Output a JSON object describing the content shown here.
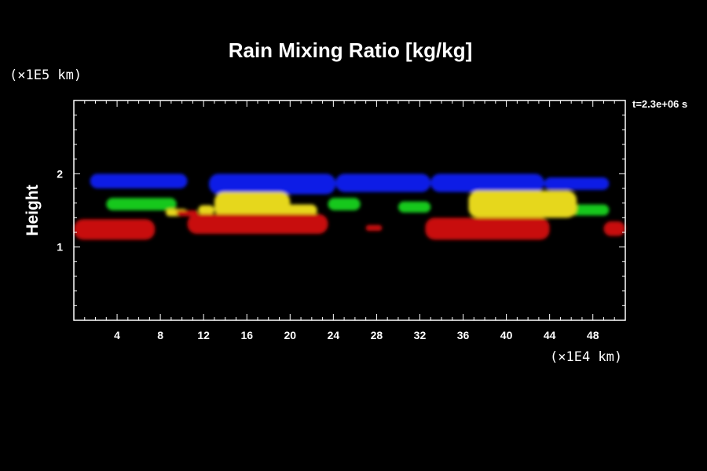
{
  "chart_data": {
    "type": "heatmap",
    "title": "Rain Mixing Ratio [kg/kg]",
    "ylabel": "Height",
    "xunit": "(×1E4 km)",
    "yunit": "(×1E5 km)",
    "time_label": "t=2.3e+06 s",
    "xlim": [
      0,
      51
    ],
    "ylim": [
      0,
      3.0
    ],
    "x_ticks": [
      4,
      8,
      12,
      16,
      20,
      24,
      28,
      32,
      36,
      40,
      44,
      48
    ],
    "y_ticks": [
      1,
      2
    ],
    "grid": false,
    "colors": {
      "background": "#000000",
      "frame": "#ffffff",
      "text": "#ffffff",
      "blue": "#0a1ee6",
      "green": "#19c81e",
      "yellow": "#e6d71e",
      "red": "#c80f0f"
    },
    "regions": [
      {
        "color": "blue",
        "x": [
          1.5,
          10.5
        ],
        "y": [
          1.8,
          2.0
        ]
      },
      {
        "color": "blue",
        "x": [
          12.5,
          24.2
        ],
        "y": [
          1.72,
          2.0
        ]
      },
      {
        "color": "blue",
        "x": [
          24.2,
          33.0
        ],
        "y": [
          1.75,
          2.0
        ]
      },
      {
        "color": "blue",
        "x": [
          33.0,
          43.5
        ],
        "y": [
          1.75,
          2.0
        ]
      },
      {
        "color": "blue",
        "x": [
          43.5,
          49.5
        ],
        "y": [
          1.78,
          1.95
        ]
      },
      {
        "color": "green",
        "x": [
          3.0,
          9.5
        ],
        "y": [
          1.5,
          1.67
        ]
      },
      {
        "color": "green",
        "x": [
          23.5,
          26.5
        ],
        "y": [
          1.5,
          1.67
        ]
      },
      {
        "color": "green",
        "x": [
          30.0,
          33.0
        ],
        "y": [
          1.47,
          1.62
        ]
      },
      {
        "color": "green",
        "x": [
          45.5,
          49.5
        ],
        "y": [
          1.43,
          1.58
        ]
      },
      {
        "color": "yellow",
        "x": [
          13.0,
          20.0
        ],
        "y": [
          1.4,
          1.75
        ]
      },
      {
        "color": "yellow",
        "x": [
          19.5,
          22.5
        ],
        "y": [
          1.42,
          1.58
        ]
      },
      {
        "color": "yellow",
        "x": [
          36.5,
          46.5
        ],
        "y": [
          1.4,
          1.77
        ]
      },
      {
        "color": "yellow",
        "x": [
          8.5,
          10.5
        ],
        "y": [
          1.42,
          1.52
        ]
      },
      {
        "color": "yellow",
        "x": [
          11.5,
          13.0
        ],
        "y": [
          1.44,
          1.57
        ]
      },
      {
        "color": "red",
        "x": [
          0.0,
          7.5
        ],
        "y": [
          1.1,
          1.38
        ]
      },
      {
        "color": "red",
        "x": [
          9.5,
          11.5
        ],
        "y": [
          1.42,
          1.5
        ]
      },
      {
        "color": "red",
        "x": [
          10.5,
          23.5
        ],
        "y": [
          1.18,
          1.45
        ]
      },
      {
        "color": "red",
        "x": [
          27.0,
          28.5
        ],
        "y": [
          1.22,
          1.3
        ]
      },
      {
        "color": "red",
        "x": [
          32.5,
          44.0
        ],
        "y": [
          1.1,
          1.4
        ]
      },
      {
        "color": "red",
        "x": [
          49.0,
          51.0
        ],
        "y": [
          1.15,
          1.35
        ]
      }
    ]
  }
}
